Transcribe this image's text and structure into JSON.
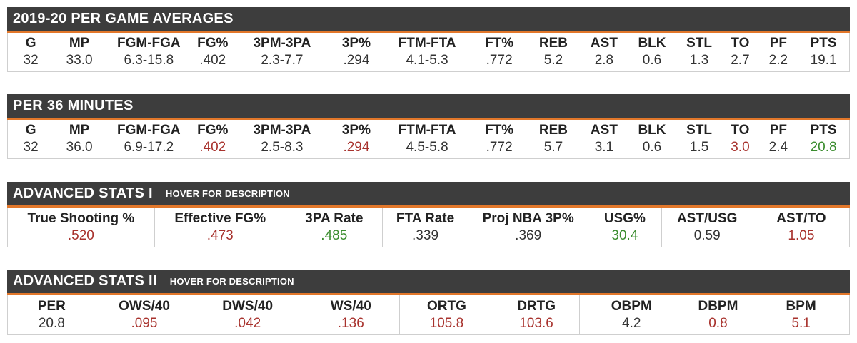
{
  "sections": [
    {
      "title": "2019-20 PER GAME AVERAGES",
      "hover": "",
      "columns": [
        {
          "label": "G",
          "value": "32",
          "tone": ""
        },
        {
          "label": "MP",
          "value": "33.0",
          "tone": ""
        },
        {
          "label": "FGM-FGA",
          "value": "6.3-15.8",
          "tone": ""
        },
        {
          "label": "FG%",
          "value": ".402",
          "tone": ""
        },
        {
          "label": "3PM-3PA",
          "value": "2.3-7.7",
          "tone": ""
        },
        {
          "label": "3P%",
          "value": ".294",
          "tone": ""
        },
        {
          "label": "FTM-FTA",
          "value": "4.1-5.3",
          "tone": ""
        },
        {
          "label": "FT%",
          "value": ".772",
          "tone": ""
        },
        {
          "label": "REB",
          "value": "5.2",
          "tone": ""
        },
        {
          "label": "AST",
          "value": "2.8",
          "tone": ""
        },
        {
          "label": "BLK",
          "value": "0.6",
          "tone": ""
        },
        {
          "label": "STL",
          "value": "1.3",
          "tone": ""
        },
        {
          "label": "TO",
          "value": "2.7",
          "tone": ""
        },
        {
          "label": "PF",
          "value": "2.2",
          "tone": ""
        },
        {
          "label": "PTS",
          "value": "19.1",
          "tone": ""
        }
      ]
    },
    {
      "title": "PER 36 MINUTES",
      "hover": "",
      "columns": [
        {
          "label": "G",
          "value": "32",
          "tone": ""
        },
        {
          "label": "MP",
          "value": "36.0",
          "tone": ""
        },
        {
          "label": "FGM-FGA",
          "value": "6.9-17.2",
          "tone": ""
        },
        {
          "label": "FG%",
          "value": ".402",
          "tone": "red"
        },
        {
          "label": "3PM-3PA",
          "value": "2.5-8.3",
          "tone": ""
        },
        {
          "label": "3P%",
          "value": ".294",
          "tone": "red"
        },
        {
          "label": "FTM-FTA",
          "value": "4.5-5.8",
          "tone": ""
        },
        {
          "label": "FT%",
          "value": ".772",
          "tone": ""
        },
        {
          "label": "REB",
          "value": "5.7",
          "tone": ""
        },
        {
          "label": "AST",
          "value": "3.1",
          "tone": ""
        },
        {
          "label": "BLK",
          "value": "0.6",
          "tone": ""
        },
        {
          "label": "STL",
          "value": "1.5",
          "tone": ""
        },
        {
          "label": "TO",
          "value": "3.0",
          "tone": "red"
        },
        {
          "label": "PF",
          "value": "2.4",
          "tone": ""
        },
        {
          "label": "PTS",
          "value": "20.8",
          "tone": "green"
        }
      ]
    },
    {
      "title": "ADVANCED STATS I",
      "hover": "HOVER FOR DESCRIPTION",
      "columns": [
        {
          "label": "True Shooting %",
          "value": ".520",
          "tone": "red"
        },
        {
          "label": "Effective FG%",
          "value": ".473",
          "tone": "red"
        },
        {
          "label": "3PA Rate",
          "value": ".485",
          "tone": "green"
        },
        {
          "label": "FTA Rate",
          "value": ".339",
          "tone": ""
        },
        {
          "label": "Proj NBA 3P%",
          "value": ".369",
          "tone": ""
        },
        {
          "label": "USG%",
          "value": "30.4",
          "tone": "green"
        },
        {
          "label": "AST/USG",
          "value": "0.59",
          "tone": ""
        },
        {
          "label": "AST/TO",
          "value": "1.05",
          "tone": "red"
        }
      ]
    },
    {
      "title": "ADVANCED STATS II",
      "hover": "HOVER FOR DESCRIPTION",
      "columns": [
        {
          "label": "PER",
          "value": "20.8",
          "tone": ""
        },
        {
          "label": "OWS/40",
          "value": ".095",
          "tone": "red"
        },
        {
          "label": "DWS/40",
          "value": ".042",
          "tone": "red"
        },
        {
          "label": "WS/40",
          "value": ".136",
          "tone": "red"
        },
        {
          "label": "ORTG",
          "value": "105.8",
          "tone": "red"
        },
        {
          "label": "DRTG",
          "value": "103.6",
          "tone": "red"
        },
        {
          "label": "OBPM",
          "value": "4.2",
          "tone": ""
        },
        {
          "label": "DBPM",
          "value": "0.8",
          "tone": "red"
        },
        {
          "label": "BPM",
          "value": "5.1",
          "tone": "red"
        }
      ]
    }
  ]
}
